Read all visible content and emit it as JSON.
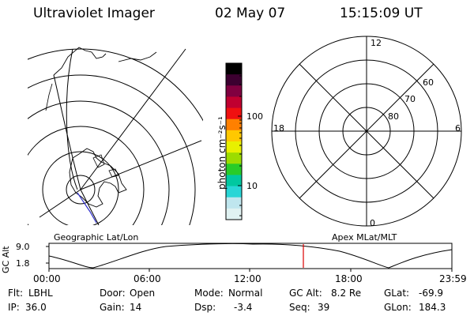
{
  "header": {
    "instrument": "Ultraviolet Imager",
    "date": "02 May 07",
    "time": "15:15:09 UT"
  },
  "colorbar": {
    "unit": "photon cm⁻²s⁻¹",
    "ticks": [
      "100",
      "10"
    ],
    "scale": "log",
    "colors": [
      "#e0f2f2",
      "#bfe6ee",
      "#28d6d6",
      "#00c8a0",
      "#28cc28",
      "#9cdc00",
      "#e8f000",
      "#ffc800",
      "#ff8000",
      "#f01010",
      "#c00030",
      "#800040",
      "#3c0030",
      "#000000"
    ]
  },
  "left_map": {
    "label": "Geographic Lat/Lon"
  },
  "right_map": {
    "label": "Apex  MLat/MLT",
    "mlt_labels": {
      "top": "12",
      "bottom": "0",
      "left": "18",
      "right": "6"
    },
    "lat_labels": [
      "60",
      "70",
      "80"
    ]
  },
  "altitude_plot": {
    "axis_label": "GC Alt",
    "y_ticks": [
      "9.0",
      "1.8"
    ],
    "x_ticks": [
      "00:00",
      "06:00",
      "12:00",
      "18:00",
      "23:59"
    ],
    "marker_color": "#dd0000",
    "marker_time": "15:15"
  },
  "status": {
    "flt_label": "Flt:",
    "flt_value": "LBHL",
    "door_label": "Door:",
    "door_value": "Open",
    "mode_label": "Mode:",
    "mode_value": "Normal",
    "gcalt_label": "GC Alt:",
    "gcalt_value": "8.2 Re",
    "glat_label": "GLat:",
    "glat_value": "-69.9",
    "ip_label": "IP:",
    "ip_value": "36.0",
    "gain_label": "Gain:",
    "gain_value": "14",
    "dsp_label": "Dsp:",
    "dsp_value": "-3.4",
    "seq_label": "Seq:",
    "seq_value": "39",
    "glon_label": "GLon:",
    "glon_value": "184.3"
  }
}
